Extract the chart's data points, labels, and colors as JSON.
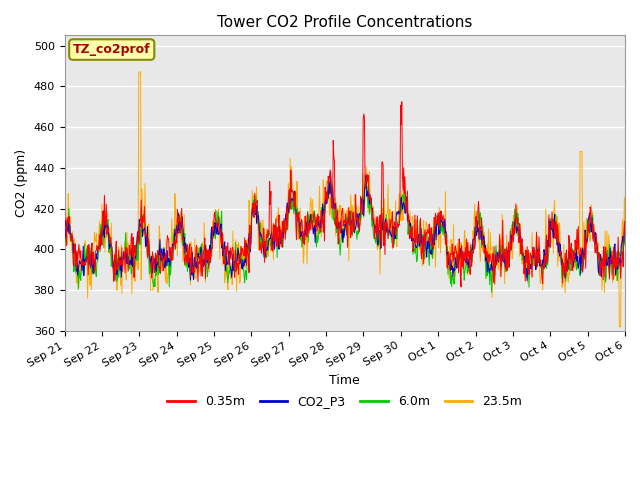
{
  "title": "Tower CO2 Profile Concentrations",
  "xlabel": "Time",
  "ylabel": "CO2 (ppm)",
  "ylim": [
    360,
    505
  ],
  "yticks": [
    360,
    380,
    400,
    420,
    440,
    460,
    480,
    500
  ],
  "annotation_text": "TZ_co2prof",
  "annotation_facecolor": "#ffffaa",
  "annotation_edgecolor": "#888800",
  "annotation_text_color": "#aa0000",
  "bg_color": "#ffffff",
  "plot_bg_color": "#e8e8e8",
  "grid_color": "#ffffff",
  "series_colors": {
    "0.35m": "#ff0000",
    "CO2_P3": "#0000cc",
    "6.0m": "#00cc00",
    "23.5m": "#ffaa00"
  },
  "legend_labels": [
    "0.35m",
    "CO2_P3",
    "6.0m",
    "23.5m"
  ],
  "x_tick_labels": [
    "Sep 21",
    "Sep 22",
    "Sep 23",
    "Sep 24",
    "Sep 25",
    "Sep 26",
    "Sep 27",
    "Sep 28",
    "Sep 29",
    "Sep 30",
    "Oct 1",
    "Oct 2",
    "Oct 3",
    "Oct 4",
    "Oct 5",
    "Oct 6"
  ],
  "n_points": 900,
  "figwidth": 6.4,
  "figheight": 4.8,
  "dpi": 100
}
